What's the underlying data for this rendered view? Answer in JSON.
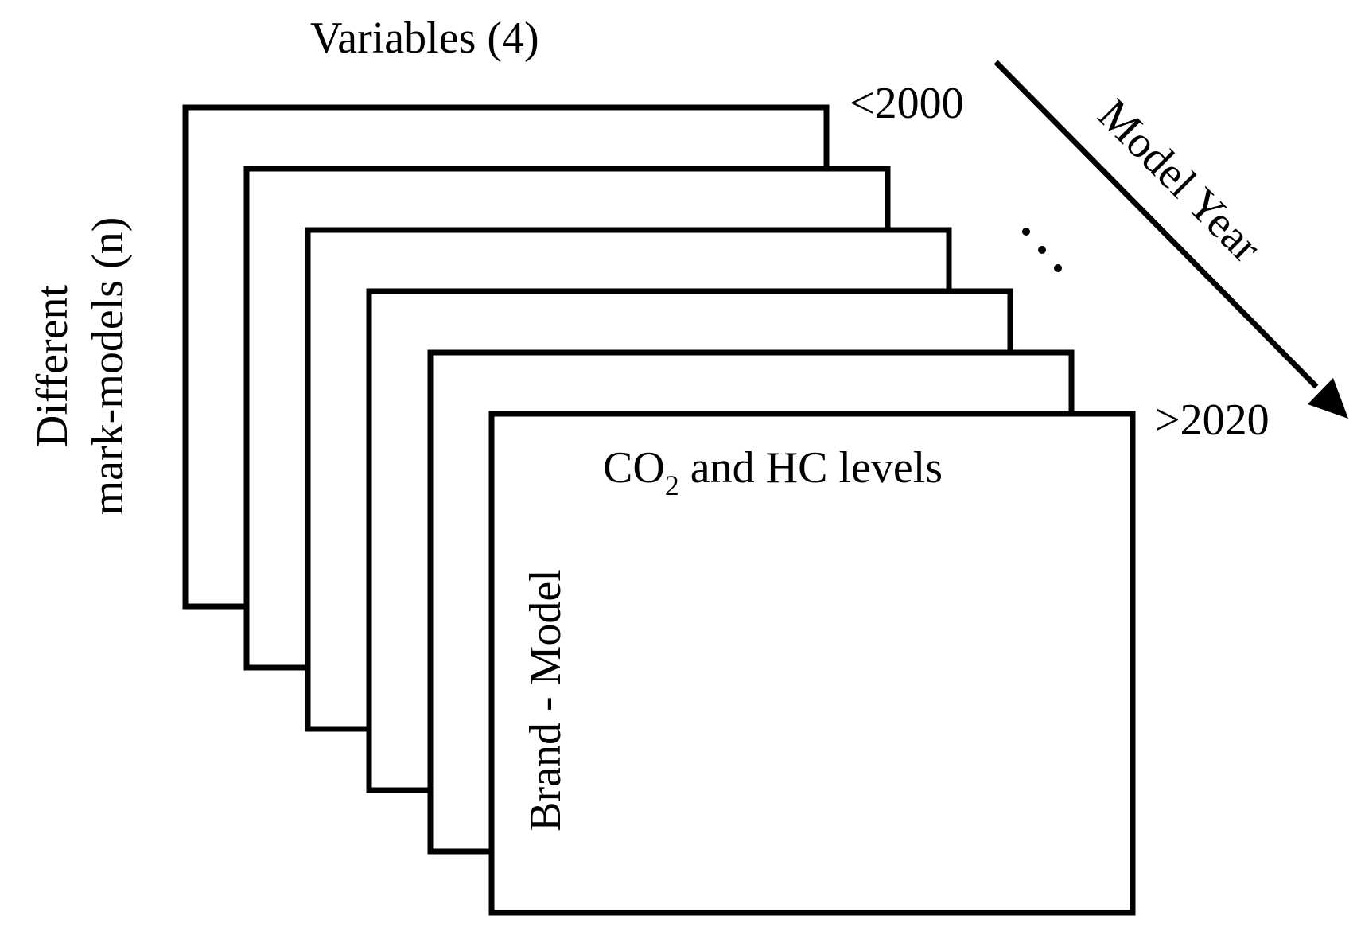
{
  "title": "Variables (4)",
  "y_axis_label": {
    "line1": "Different",
    "line2": "mark-models (n)"
  },
  "year_axis": {
    "label": "Model Year",
    "start": "<2000",
    "end": ">2020",
    "ellipsis": "…"
  },
  "front_sheet": {
    "column_header_prefix": "CO",
    "column_header_subscript": "2",
    "column_header_suffix": " and HC levels",
    "row_header": "Brand - Model"
  },
  "sheet_count": 6
}
